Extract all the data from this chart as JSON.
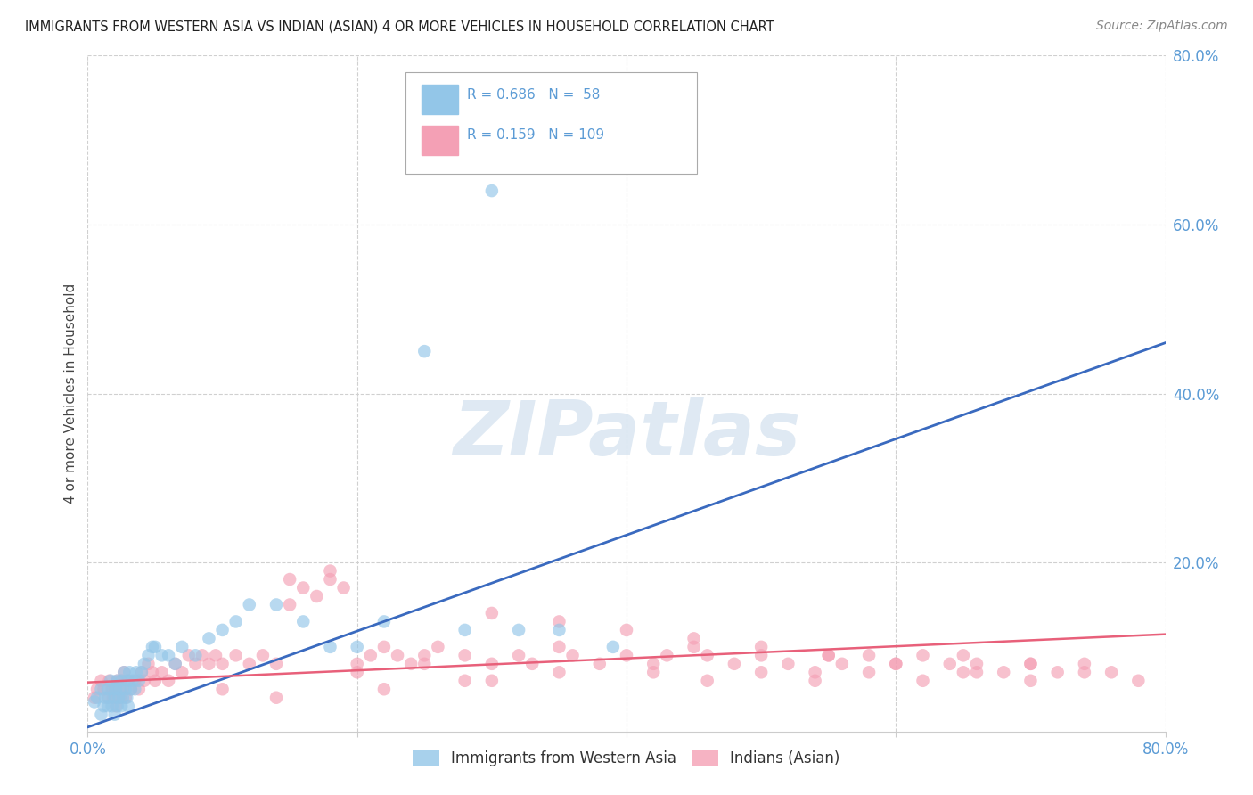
{
  "title": "IMMIGRANTS FROM WESTERN ASIA VS INDIAN (ASIAN) 4 OR MORE VEHICLES IN HOUSEHOLD CORRELATION CHART",
  "source": "Source: ZipAtlas.com",
  "ylabel": "4 or more Vehicles in Household",
  "xlim": [
    0.0,
    0.8
  ],
  "ylim": [
    0.0,
    0.8
  ],
  "xticks": [
    0.0,
    0.2,
    0.4,
    0.6,
    0.8
  ],
  "yticks": [
    0.2,
    0.4,
    0.6,
    0.8
  ],
  "xticklabels": [
    "0.0%",
    "",
    "",
    "",
    "80.0%"
  ],
  "yticklabels": [
    "20.0%",
    "40.0%",
    "60.0%",
    "80.0%"
  ],
  "legend_labels": [
    "Immigrants from Western Asia",
    "Indians (Asian)"
  ],
  "blue_color": "#93c6e8",
  "pink_color": "#f4a0b5",
  "blue_line_color": "#3a6abf",
  "pink_line_color": "#e8607a",
  "blue_scatter_x": [
    0.005,
    0.007,
    0.01,
    0.01,
    0.012,
    0.013,
    0.015,
    0.015,
    0.016,
    0.017,
    0.018,
    0.019,
    0.02,
    0.02,
    0.021,
    0.022,
    0.022,
    0.023,
    0.024,
    0.025,
    0.025,
    0.026,
    0.027,
    0.028,
    0.029,
    0.03,
    0.03,
    0.031,
    0.032,
    0.033,
    0.035,
    0.036,
    0.038,
    0.04,
    0.042,
    0.045,
    0.048,
    0.05,
    0.055,
    0.06,
    0.065,
    0.07,
    0.08,
    0.09,
    0.1,
    0.11,
    0.12,
    0.14,
    0.16,
    0.18,
    0.2,
    0.22,
    0.25,
    0.28,
    0.3,
    0.32,
    0.35,
    0.39
  ],
  "blue_scatter_y": [
    0.035,
    0.04,
    0.02,
    0.05,
    0.03,
    0.04,
    0.03,
    0.05,
    0.04,
    0.06,
    0.03,
    0.05,
    0.02,
    0.04,
    0.05,
    0.03,
    0.06,
    0.04,
    0.05,
    0.03,
    0.06,
    0.04,
    0.07,
    0.05,
    0.04,
    0.06,
    0.03,
    0.07,
    0.05,
    0.06,
    0.05,
    0.07,
    0.06,
    0.07,
    0.08,
    0.09,
    0.1,
    0.1,
    0.09,
    0.09,
    0.08,
    0.1,
    0.09,
    0.11,
    0.12,
    0.13,
    0.15,
    0.15,
    0.13,
    0.1,
    0.1,
    0.13,
    0.45,
    0.12,
    0.64,
    0.12,
    0.12,
    0.1
  ],
  "pink_scatter_x": [
    0.005,
    0.007,
    0.01,
    0.012,
    0.015,
    0.016,
    0.018,
    0.019,
    0.02,
    0.021,
    0.022,
    0.023,
    0.024,
    0.025,
    0.026,
    0.027,
    0.028,
    0.03,
    0.032,
    0.035,
    0.038,
    0.04,
    0.042,
    0.045,
    0.048,
    0.05,
    0.055,
    0.06,
    0.065,
    0.07,
    0.075,
    0.08,
    0.085,
    0.09,
    0.095,
    0.1,
    0.11,
    0.12,
    0.13,
    0.14,
    0.15,
    0.16,
    0.17,
    0.18,
    0.19,
    0.2,
    0.21,
    0.22,
    0.23,
    0.24,
    0.25,
    0.26,
    0.28,
    0.3,
    0.32,
    0.33,
    0.35,
    0.36,
    0.38,
    0.4,
    0.42,
    0.43,
    0.45,
    0.46,
    0.48,
    0.5,
    0.52,
    0.54,
    0.55,
    0.56,
    0.58,
    0.6,
    0.62,
    0.64,
    0.65,
    0.66,
    0.68,
    0.7,
    0.72,
    0.74,
    0.76,
    0.3,
    0.35,
    0.4,
    0.45,
    0.5,
    0.55,
    0.6,
    0.65,
    0.7,
    0.2,
    0.25,
    0.3,
    0.35,
    0.22,
    0.28,
    0.15,
    0.18,
    0.42,
    0.46,
    0.5,
    0.54,
    0.58,
    0.62,
    0.66,
    0.7,
    0.74,
    0.78,
    0.1,
    0.14
  ],
  "pink_scatter_y": [
    0.04,
    0.05,
    0.06,
    0.05,
    0.04,
    0.06,
    0.05,
    0.04,
    0.05,
    0.03,
    0.06,
    0.05,
    0.04,
    0.06,
    0.05,
    0.07,
    0.04,
    0.06,
    0.05,
    0.06,
    0.05,
    0.07,
    0.06,
    0.08,
    0.07,
    0.06,
    0.07,
    0.06,
    0.08,
    0.07,
    0.09,
    0.08,
    0.09,
    0.08,
    0.09,
    0.08,
    0.09,
    0.08,
    0.09,
    0.08,
    0.15,
    0.17,
    0.16,
    0.18,
    0.17,
    0.08,
    0.09,
    0.1,
    0.09,
    0.08,
    0.09,
    0.1,
    0.09,
    0.08,
    0.09,
    0.08,
    0.1,
    0.09,
    0.08,
    0.09,
    0.08,
    0.09,
    0.1,
    0.09,
    0.08,
    0.09,
    0.08,
    0.07,
    0.09,
    0.08,
    0.09,
    0.08,
    0.09,
    0.08,
    0.09,
    0.08,
    0.07,
    0.08,
    0.07,
    0.08,
    0.07,
    0.14,
    0.13,
    0.12,
    0.11,
    0.1,
    0.09,
    0.08,
    0.07,
    0.08,
    0.07,
    0.08,
    0.06,
    0.07,
    0.05,
    0.06,
    0.18,
    0.19,
    0.07,
    0.06,
    0.07,
    0.06,
    0.07,
    0.06,
    0.07,
    0.06,
    0.07,
    0.06,
    0.05,
    0.04
  ],
  "blue_line_x": [
    0.0,
    0.8
  ],
  "blue_line_y": [
    0.005,
    0.46
  ],
  "pink_line_x": [
    0.0,
    0.8
  ],
  "pink_line_y": [
    0.058,
    0.115
  ],
  "watermark": "ZIPatlas",
  "background_color": "#ffffff",
  "grid_color": "#d0d0d0",
  "tick_label_color": "#5b9bd5",
  "title_color": "#222222",
  "source_color": "#888888",
  "ylabel_color": "#444444"
}
